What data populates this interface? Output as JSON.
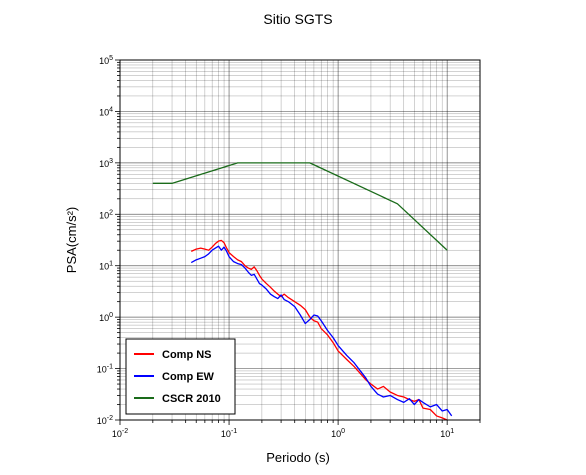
{
  "chart_data": {
    "type": "line",
    "title": "Sitio SGTS",
    "xlabel": "Periodo (s)",
    "ylabel": "PSA(cm/s²)",
    "xscale": "log",
    "yscale": "log",
    "xlim": [
      0.01,
      20
    ],
    "ylim": [
      0.01,
      100000
    ],
    "grid": true,
    "legend_position": "bottom-left",
    "x_ticks": [
      {
        "base": "10",
        "exp": "-2"
      },
      {
        "base": "10",
        "exp": "-1"
      },
      {
        "base": "10",
        "exp": "0"
      },
      {
        "base": "10",
        "exp": "1"
      }
    ],
    "y_ticks": [
      {
        "base": "10",
        "exp": "-2"
      },
      {
        "base": "10",
        "exp": "-1"
      },
      {
        "base": "10",
        "exp": "0"
      },
      {
        "base": "10",
        "exp": "1"
      },
      {
        "base": "10",
        "exp": "2"
      },
      {
        "base": "10",
        "exp": "3"
      },
      {
        "base": "10",
        "exp": "4"
      },
      {
        "base": "10",
        "exp": "5"
      }
    ],
    "series": [
      {
        "name": "Comp NS",
        "color": "#ff0000",
        "points": [
          [
            0.045,
            19
          ],
          [
            0.05,
            21
          ],
          [
            0.055,
            22
          ],
          [
            0.06,
            21
          ],
          [
            0.065,
            20
          ],
          [
            0.07,
            23
          ],
          [
            0.075,
            27
          ],
          [
            0.08,
            30
          ],
          [
            0.085,
            31
          ],
          [
            0.09,
            28
          ],
          [
            0.095,
            22
          ],
          [
            0.1,
            18
          ],
          [
            0.11,
            15
          ],
          [
            0.12,
            13
          ],
          [
            0.13,
            12
          ],
          [
            0.14,
            10
          ],
          [
            0.15,
            9
          ],
          [
            0.16,
            8.5
          ],
          [
            0.17,
            9.5
          ],
          [
            0.18,
            8
          ],
          [
            0.19,
            6.5
          ],
          [
            0.2,
            5.5
          ],
          [
            0.22,
            4.5
          ],
          [
            0.24,
            3.8
          ],
          [
            0.26,
            3.2
          ],
          [
            0.28,
            2.8
          ],
          [
            0.3,
            2.5
          ],
          [
            0.32,
            2.8
          ],
          [
            0.35,
            2.4
          ],
          [
            0.4,
            2.0
          ],
          [
            0.45,
            1.7
          ],
          [
            0.5,
            1.4
          ],
          [
            0.55,
            1.0
          ],
          [
            0.6,
            0.85
          ],
          [
            0.65,
            0.8
          ],
          [
            0.7,
            0.6
          ],
          [
            0.8,
            0.45
          ],
          [
            0.9,
            0.32
          ],
          [
            1.0,
            0.22
          ],
          [
            1.2,
            0.15
          ],
          [
            1.4,
            0.11
          ],
          [
            1.6,
            0.08
          ],
          [
            1.8,
            0.06
          ],
          [
            2.0,
            0.05
          ],
          [
            2.3,
            0.04
          ],
          [
            2.6,
            0.045
          ],
          [
            3.0,
            0.035
          ],
          [
            3.5,
            0.03
          ],
          [
            4.0,
            0.028
          ],
          [
            4.5,
            0.025
          ],
          [
            5.0,
            0.023
          ],
          [
            5.5,
            0.025
          ],
          [
            6.0,
            0.017
          ],
          [
            7.0,
            0.016
          ],
          [
            8.0,
            0.012
          ],
          [
            9.0,
            0.011
          ],
          [
            10.0,
            0.01
          ]
        ]
      },
      {
        "name": "Comp EW",
        "color": "#0000ff",
        "points": [
          [
            0.045,
            11.5
          ],
          [
            0.05,
            13
          ],
          [
            0.055,
            14
          ],
          [
            0.06,
            15
          ],
          [
            0.065,
            17
          ],
          [
            0.07,
            20
          ],
          [
            0.075,
            22
          ],
          [
            0.08,
            24
          ],
          [
            0.085,
            20
          ],
          [
            0.09,
            23
          ],
          [
            0.095,
            19
          ],
          [
            0.1,
            15
          ],
          [
            0.11,
            12
          ],
          [
            0.12,
            11
          ],
          [
            0.13,
            10.5
          ],
          [
            0.14,
            9
          ],
          [
            0.15,
            7.5
          ],
          [
            0.16,
            6.5
          ],
          [
            0.17,
            6.8
          ],
          [
            0.18,
            5.5
          ],
          [
            0.19,
            4.5
          ],
          [
            0.2,
            4.2
          ],
          [
            0.22,
            3.5
          ],
          [
            0.24,
            2.8
          ],
          [
            0.26,
            2.5
          ],
          [
            0.28,
            2.3
          ],
          [
            0.3,
            2.7
          ],
          [
            0.32,
            2.2
          ],
          [
            0.35,
            2.0
          ],
          [
            0.4,
            1.6
          ],
          [
            0.45,
            1.1
          ],
          [
            0.5,
            0.75
          ],
          [
            0.55,
            0.9
          ],
          [
            0.6,
            1.1
          ],
          [
            0.65,
            1.05
          ],
          [
            0.7,
            0.85
          ],
          [
            0.8,
            0.55
          ],
          [
            0.9,
            0.4
          ],
          [
            1.0,
            0.28
          ],
          [
            1.2,
            0.18
          ],
          [
            1.4,
            0.13
          ],
          [
            1.6,
            0.09
          ],
          [
            1.8,
            0.065
          ],
          [
            2.0,
            0.045
          ],
          [
            2.3,
            0.032
          ],
          [
            2.6,
            0.028
          ],
          [
            3.0,
            0.03
          ],
          [
            3.5,
            0.025
          ],
          [
            4.0,
            0.022
          ],
          [
            4.5,
            0.026
          ],
          [
            5.0,
            0.02
          ],
          [
            5.5,
            0.025
          ],
          [
            6.0,
            0.022
          ],
          [
            7.0,
            0.018
          ],
          [
            8.0,
            0.02
          ],
          [
            9.0,
            0.015
          ],
          [
            10.0,
            0.016
          ],
          [
            11.0,
            0.012
          ]
        ]
      },
      {
        "name": "CSCR 2010",
        "color": "#1a6b1a",
        "points": [
          [
            0.02,
            400
          ],
          [
            0.03,
            400
          ],
          [
            0.12,
            1000
          ],
          [
            0.55,
            1000
          ],
          [
            3.5,
            160
          ],
          [
            10,
            20
          ]
        ]
      }
    ]
  }
}
